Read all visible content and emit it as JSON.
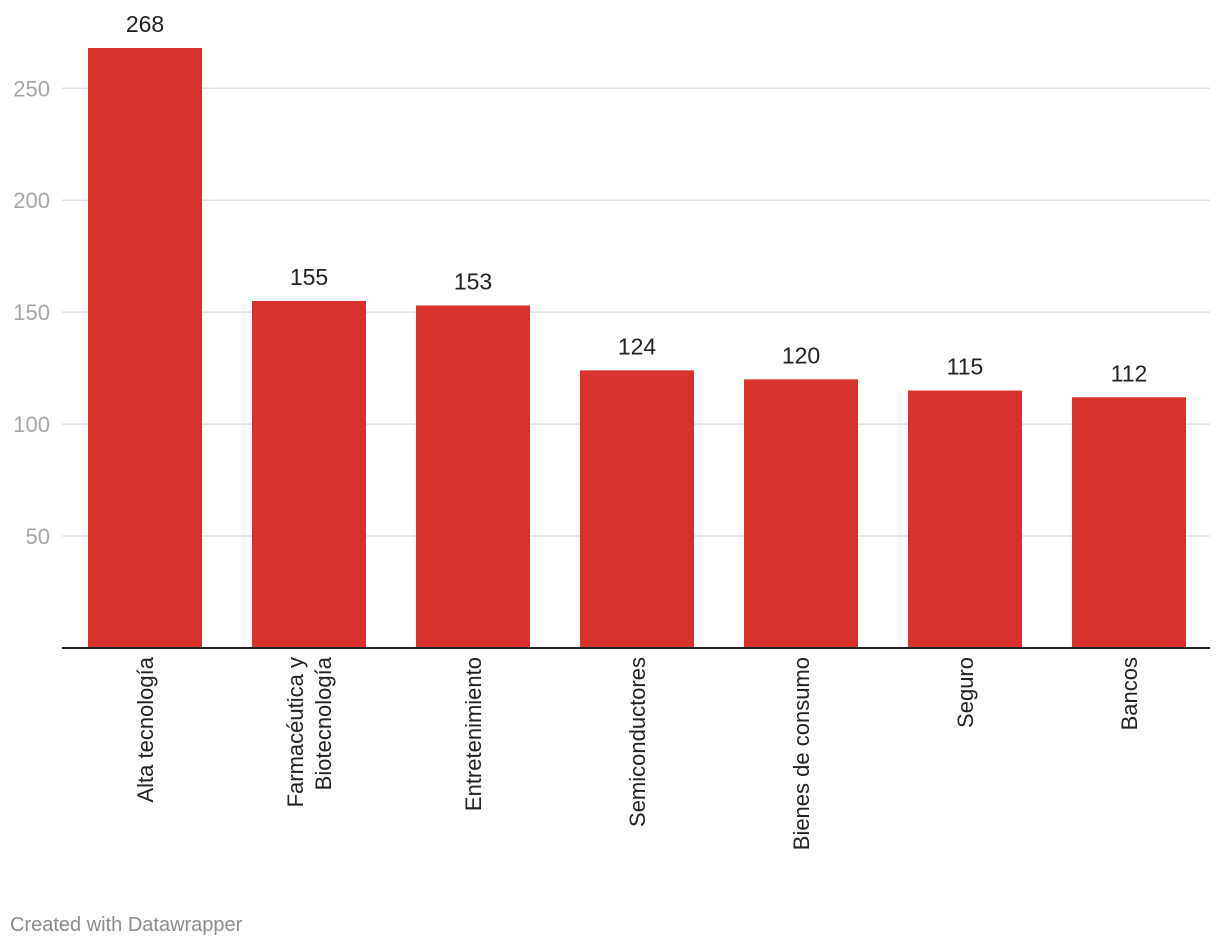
{
  "chart_data": {
    "type": "bar",
    "categories": [
      "Alta tecnología",
      "Farmacéutica y Biotecnología",
      "Entretenimiento",
      "Semiconductores",
      "Bienes de consumo",
      "Seguro",
      "Bancos"
    ],
    "category_lines": [
      [
        "Alta tecnología"
      ],
      [
        "Farmacéutica y",
        "Biotecnología"
      ],
      [
        "Entretenimiento"
      ],
      [
        "Semiconductores"
      ],
      [
        "Bienes de consumo"
      ],
      [
        "Seguro"
      ],
      [
        "Bancos"
      ]
    ],
    "values": [
      268,
      155,
      153,
      124,
      120,
      115,
      112
    ],
    "value_labels": [
      "268",
      "155",
      "153",
      "124",
      "120",
      "115",
      "112"
    ],
    "yticks": [
      50,
      100,
      150,
      200,
      250
    ],
    "ytick_labels": [
      "50",
      "100",
      "150",
      "200",
      "250"
    ],
    "ylim": [
      0,
      268
    ],
    "grid": true,
    "title": "",
    "xlabel": "",
    "ylabel": "",
    "colors": {
      "bar": "#d9312b",
      "grid": "#e0e0e0",
      "axis": "#222222",
      "tick_label": "#a6a6a6",
      "value_label": "#222222",
      "category_label": "#222222"
    }
  },
  "footer": {
    "credit": "Created with Datawrapper"
  }
}
